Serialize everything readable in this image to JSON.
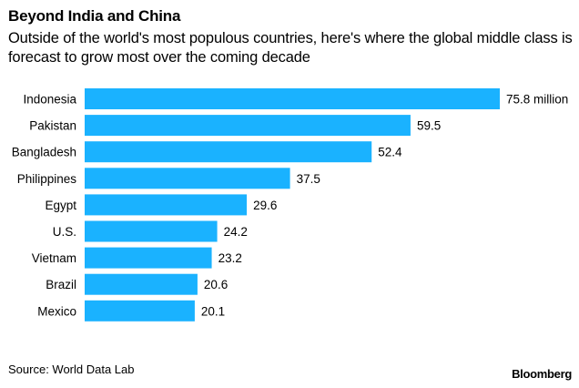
{
  "title": "Beyond India and China",
  "subtitle": "Outside of the world's most populous countries, here's where the global middle class is forecast to grow most over the coming decade",
  "source": "Source: World Data Lab",
  "brand": "Bloomberg",
  "colors": {
    "bar": "#1ab2ff"
  },
  "chart_data": {
    "type": "bar",
    "orientation": "horizontal",
    "categories": [
      "Indonesia",
      "Pakistan",
      "Bangladesh",
      "Philippines",
      "Egypt",
      "U.S.",
      "Vietnam",
      "Brazil",
      "Mexico"
    ],
    "values": [
      75.8,
      59.5,
      52.4,
      37.5,
      29.6,
      24.2,
      23.2,
      20.6,
      20.1
    ],
    "value_labels": [
      "75.8 million",
      "59.5",
      "52.4",
      "37.5",
      "29.6",
      "24.2",
      "23.2",
      "20.6",
      "20.1"
    ],
    "xlim": [
      0,
      75.8
    ],
    "grid": false,
    "legend": "none"
  }
}
